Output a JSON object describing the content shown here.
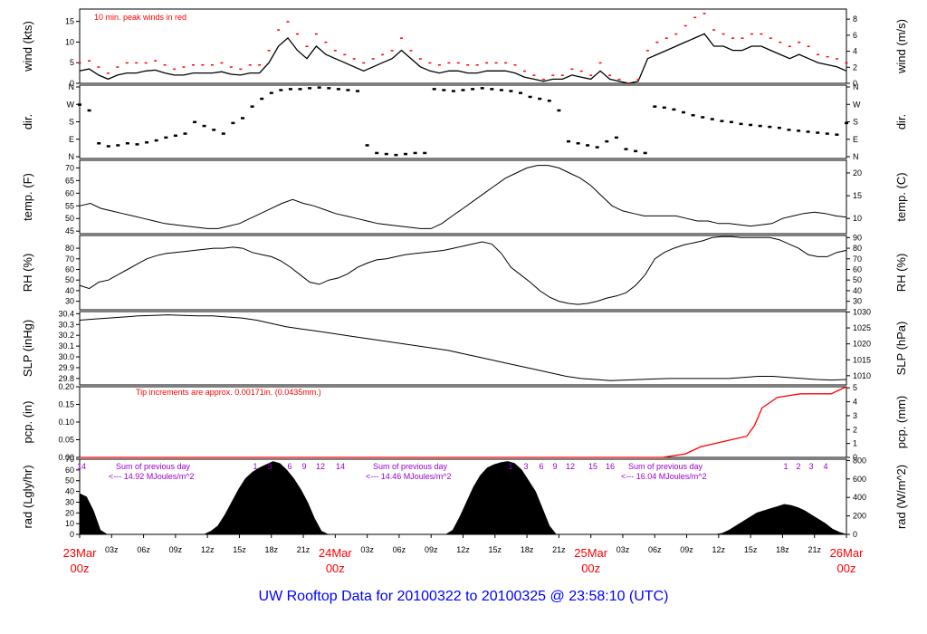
{
  "footer": {
    "title": "UW Rooftop Data for 20100322  to  20100325 @ 23:58:10  (UTC)",
    "color": "#0000ff"
  },
  "colors": {
    "accent": "#ff0000",
    "purple": "#9900cc",
    "trace": "#000000"
  },
  "time_axis": {
    "hour_labels": [
      "03z",
      "06z",
      "09z",
      "12z",
      "15z",
      "18z",
      "21z",
      "03z",
      "06z",
      "09z",
      "12z",
      "15z",
      "18z",
      "21z",
      "03z",
      "06z",
      "09z",
      "12z",
      "15z",
      "18z",
      "21z"
    ],
    "day_labels": [
      {
        "date": "23Mar",
        "hour": "00z"
      },
      {
        "date": "24Mar",
        "hour": "00z"
      },
      {
        "date": "25Mar",
        "hour": "00z"
      },
      {
        "date": "26Mar",
        "hour": "00z"
      }
    ]
  },
  "chart_data": [
    {
      "type": "line",
      "id": "wind",
      "ylabel": "wind (kts)",
      "ylabel_right": "wind (m/s)",
      "yticks_left": [
        "0",
        "5",
        "10",
        "15"
      ],
      "yticks_right": [
        "0",
        "2",
        "4",
        "6",
        "8"
      ],
      "ylim": [
        0,
        18
      ],
      "annotation": "10 min. peak winds in red",
      "series": [
        {
          "values": [
            3,
            3.5,
            2,
            1,
            2,
            2.5,
            2.5,
            3,
            3.2,
            2.5,
            2,
            2,
            2.5,
            2.5,
            2.5,
            2.8,
            2.2,
            2,
            2.5,
            2.5,
            5,
            9,
            11,
            8,
            6,
            9,
            7,
            6,
            5,
            4,
            3,
            4,
            5,
            6,
            8,
            6,
            4,
            3,
            2.5,
            3,
            3,
            2.5,
            2.5,
            3,
            3,
            3,
            2.5,
            1.5,
            1,
            0.5,
            1,
            1,
            2,
            1.5,
            1,
            3,
            1,
            0.5,
            0,
            0.5,
            6,
            7,
            8,
            9,
            10,
            11,
            12,
            9,
            9,
            8,
            8,
            9,
            9,
            8,
            7,
            6,
            7,
            6,
            5,
            4.5,
            4,
            3
          ]
        },
        {
          "name": "10 min. peak winds in red",
          "values": [
            5,
            5.5,
            4,
            2.5,
            4,
            5,
            5,
            5,
            5.5,
            4.5,
            3.5,
            4,
            4.5,
            4.5,
            4.5,
            5,
            4,
            3.5,
            4.5,
            4.5,
            8,
            13,
            15,
            12,
            9,
            12,
            10,
            8,
            7,
            6,
            5,
            6,
            7,
            8,
            11,
            8,
            6,
            5,
            4.5,
            5,
            5,
            4.5,
            4.5,
            5,
            5,
            5,
            4.5,
            3,
            2,
            1,
            2,
            2,
            3.5,
            3,
            2,
            5,
            2,
            1,
            0,
            1,
            8,
            10,
            11,
            12,
            14,
            16,
            17,
            13,
            12,
            11,
            11,
            12,
            12,
            11,
            10,
            9,
            10,
            9,
            7,
            6.5,
            6,
            5
          ]
        }
      ]
    },
    {
      "type": "scatter",
      "id": "direction",
      "ylabel": "dir.",
      "ylabel_right": "dir.",
      "yticks_left": [
        "N",
        "E",
        "S",
        "W",
        "N"
      ],
      "yticks_right": [
        "N",
        "E",
        "S",
        "W",
        "N"
      ],
      "ylim": [
        0,
        360
      ],
      "values": [
        270,
        240,
        70,
        55,
        60,
        70,
        65,
        75,
        85,
        100,
        110,
        120,
        180,
        160,
        140,
        120,
        175,
        200,
        260,
        300,
        330,
        345,
        350,
        350,
        355,
        358,
        355,
        350,
        345,
        340,
        60,
        20,
        15,
        10,
        15,
        20,
        20,
        350,
        345,
        340,
        345,
        350,
        355,
        350,
        345,
        340,
        330,
        310,
        300,
        290,
        240,
        80,
        70,
        60,
        50,
        80,
        100,
        40,
        30,
        20,
        260,
        255,
        245,
        230,
        215,
        205,
        195,
        185,
        180,
        170,
        165,
        160,
        155,
        150,
        140,
        135,
        130,
        125,
        120,
        115,
        175
      ]
    },
    {
      "type": "line",
      "id": "temperature",
      "ylabel": "temp. (F)",
      "ylabel_right": "temp. (C)",
      "yticks_left": [
        "45",
        "50",
        "55",
        "60",
        "65",
        "70"
      ],
      "yticks_right": [
        "10",
        "15",
        "20"
      ],
      "ylim": [
        44,
        73
      ],
      "values": [
        55,
        56,
        54,
        53,
        52,
        51,
        50,
        49,
        48,
        47.5,
        47,
        46.5,
        46,
        46,
        47,
        48,
        50,
        52,
        54,
        56,
        57.5,
        56,
        55,
        53.5,
        52,
        51,
        50,
        49,
        48,
        47.5,
        47,
        46.5,
        46,
        46,
        48,
        51,
        54,
        57,
        60,
        63,
        66,
        68,
        70,
        71,
        71,
        70,
        68,
        66,
        63,
        59,
        55,
        53,
        52,
        51,
        51,
        51,
        51,
        50,
        49,
        49,
        48,
        48,
        47.5,
        47,
        47.5,
        48,
        50,
        51,
        52,
        52.5,
        52,
        51,
        50.5
      ]
    },
    {
      "type": "line",
      "id": "rh",
      "ylabel": "RH (%)",
      "ylabel_right": "RH (%)",
      "yticks_left": [
        "30",
        "40",
        "50",
        "60",
        "70",
        "80"
      ],
      "yticks_right": [
        "30",
        "40",
        "50",
        "60",
        "70",
        "80",
        "90"
      ],
      "ylim": [
        22,
        92
      ],
      "values": [
        45,
        42,
        48,
        50,
        55,
        60,
        65,
        70,
        73,
        75,
        76,
        77,
        78,
        79,
        80,
        80,
        81,
        80,
        76,
        74,
        72,
        68,
        62,
        55,
        48,
        46,
        50,
        52,
        56,
        62,
        66,
        69,
        70,
        72,
        74,
        75,
        76,
        77,
        78,
        80,
        82,
        84,
        86,
        84,
        75,
        62,
        55,
        48,
        40,
        34,
        30,
        28,
        27,
        28,
        30,
        33,
        35,
        38,
        45,
        55,
        70,
        76,
        80,
        83,
        85,
        87,
        90,
        91,
        91,
        90,
        90,
        90,
        90,
        88,
        84,
        80,
        74,
        72,
        72,
        76,
        78
      ]
    },
    {
      "type": "line",
      "id": "pressure",
      "ylabel": "SLP (inHg)",
      "ylabel_right": "SLP (hPa)",
      "yticks_left": [
        "29.8",
        "29.9",
        "30.0",
        "30.1",
        "30.2",
        "30.3",
        "30.4"
      ],
      "yticks_right": [
        "1010",
        "1015",
        "1020",
        "1025",
        "1030"
      ],
      "ylim": [
        29.74,
        30.42
      ],
      "values": [
        30.34,
        30.35,
        30.36,
        30.37,
        30.38,
        30.385,
        30.39,
        30.385,
        30.38,
        30.38,
        30.37,
        30.36,
        30.34,
        30.31,
        30.28,
        30.26,
        30.24,
        30.22,
        30.2,
        30.18,
        30.16,
        30.14,
        30.12,
        30.1,
        30.08,
        30.06,
        30.03,
        30.0,
        29.97,
        29.94,
        29.91,
        29.88,
        29.85,
        29.82,
        29.8,
        29.79,
        29.78,
        29.785,
        29.79,
        29.795,
        29.8,
        29.8,
        29.8,
        29.8,
        29.8,
        29.81,
        29.82,
        29.82,
        29.81,
        29.8,
        29.79,
        29.785,
        29.79
      ]
    },
    {
      "type": "line",
      "id": "precipitation",
      "ylabel": "pcp. (in)",
      "ylabel_right": "pcp. (mm)",
      "yticks_left": [
        "0.00",
        "0.05",
        "0.10",
        "0.15",
        "0.20"
      ],
      "yticks_right": [
        "0",
        "1",
        "2",
        "3",
        "4",
        "5"
      ],
      "ylim": [
        0,
        0.2
      ],
      "annotation": "Tip increments are approx. 0.00171in. (0.0435mm.)",
      "x": [
        0,
        0.76,
        0.79,
        0.81,
        0.83,
        0.85,
        0.87,
        0.88,
        0.89,
        0.91,
        0.94,
        0.96,
        0.98,
        0.99,
        1.0
      ],
      "values": [
        0,
        0,
        0.01,
        0.03,
        0.04,
        0.05,
        0.06,
        0.09,
        0.14,
        0.17,
        0.18,
        0.18,
        0.18,
        0.19,
        0.2
      ]
    },
    {
      "type": "area",
      "id": "radiation",
      "ylabel": "rad (Lgly/hr)",
      "ylabel_right": "rad (W/m^2)",
      "yticks_left": [
        "0",
        "10",
        "20",
        "30",
        "40",
        "50",
        "60",
        "70"
      ],
      "yticks_right": [
        "0",
        "200",
        "400",
        "600",
        "800"
      ],
      "ylim": [
        0,
        70
      ],
      "values": [
        38,
        35,
        22,
        4,
        0,
        0,
        0,
        0,
        0,
        0,
        0,
        0,
        0,
        0,
        0,
        0,
        0,
        0,
        0,
        3,
        8,
        18,
        30,
        42,
        52,
        58,
        62,
        65,
        68,
        66,
        60,
        52,
        42,
        30,
        15,
        3,
        0,
        0,
        0,
        0,
        0,
        0,
        0,
        0,
        0,
        0,
        0,
        0,
        0,
        0,
        0,
        0,
        0,
        0,
        4,
        16,
        30,
        44,
        55,
        62,
        65,
        67,
        68,
        66,
        60,
        50,
        40,
        24,
        8,
        0,
        0,
        0,
        0,
        0,
        0,
        0,
        0,
        0,
        0,
        0,
        0,
        0,
        0,
        0,
        0,
        0,
        0,
        0,
        0,
        0,
        0,
        0,
        0,
        1,
        4,
        8,
        12,
        16,
        20,
        22,
        24,
        26,
        28,
        27,
        25,
        22,
        18,
        14,
        10,
        5,
        2,
        0
      ],
      "annotations": [
        {
          "text": "Sum of previous day",
          "value": "<--- 14.92 MJoules/m^2"
        },
        {
          "text": "Sum of previous day",
          "value": "<--- 14.46 MJoules/m^2"
        },
        {
          "text": "Sum of previous day",
          "value": "<--- 16.04 MJoules/m^2"
        }
      ],
      "hour_markers": [
        [
          "14"
        ],
        [
          "1",
          "3",
          "6",
          "9",
          "12",
          "14"
        ],
        [
          "1",
          "3",
          "6",
          "9",
          "12",
          "15",
          "16"
        ],
        [
          "1",
          "2",
          "3",
          "4"
        ]
      ]
    }
  ]
}
